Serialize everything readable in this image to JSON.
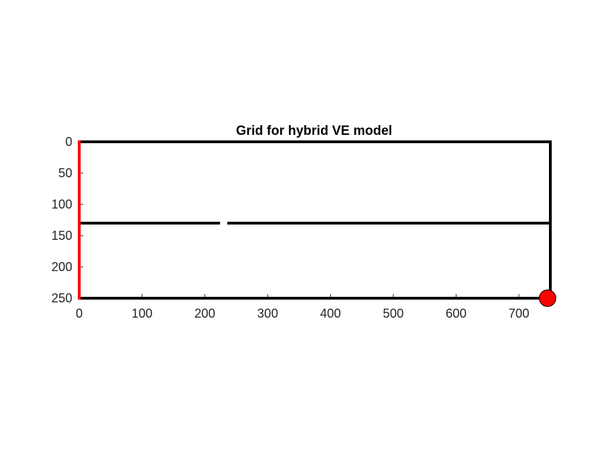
{
  "chart_data": {
    "type": "line",
    "title": "Grid for hybrid VE model",
    "xlabel": "",
    "ylabel": "",
    "xlim": [
      0,
      750
    ],
    "ylim": [
      0,
      250
    ],
    "y_reversed": true,
    "grid": false,
    "x_ticks": [
      0,
      100,
      200,
      300,
      400,
      500,
      600,
      700
    ],
    "y_ticks": [
      0,
      50,
      100,
      150,
      200,
      250
    ],
    "lines": [
      {
        "points": [
          [
            0,
            0
          ],
          [
            750,
            0
          ]
        ],
        "color": "#000000"
      },
      {
        "points": [
          [
            750,
            0
          ],
          [
            750,
            250
          ]
        ],
        "color": "#000000"
      },
      {
        "points": [
          [
            0,
            250
          ],
          [
            750,
            250
          ]
        ],
        "color": "#000000"
      },
      {
        "points": [
          [
            0,
            130
          ],
          [
            222,
            130
          ]
        ],
        "color": "#000000"
      },
      {
        "points": [
          [
            238,
            130
          ],
          [
            750,
            130
          ]
        ],
        "color": "#000000"
      },
      {
        "points": [
          [
            0,
            0
          ],
          [
            0,
            250
          ]
        ],
        "color": "#ff0000"
      }
    ],
    "markers": [
      {
        "x": 750,
        "y": 250,
        "color": "#ff0000",
        "edge": "#000000"
      }
    ]
  }
}
